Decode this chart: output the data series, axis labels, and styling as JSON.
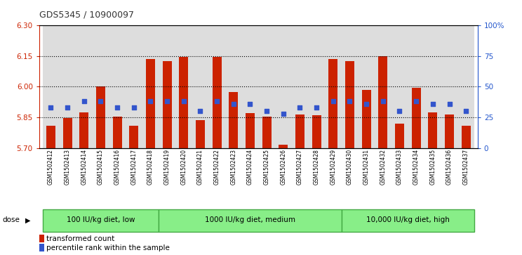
{
  "title": "GDS5345 / 10900097",
  "samples": [
    "GSM1502412",
    "GSM1502413",
    "GSM1502414",
    "GSM1502415",
    "GSM1502416",
    "GSM1502417",
    "GSM1502418",
    "GSM1502419",
    "GSM1502420",
    "GSM1502421",
    "GSM1502422",
    "GSM1502423",
    "GSM1502424",
    "GSM1502425",
    "GSM1502426",
    "GSM1502427",
    "GSM1502428",
    "GSM1502429",
    "GSM1502430",
    "GSM1502431",
    "GSM1502432",
    "GSM1502433",
    "GSM1502434",
    "GSM1502435",
    "GSM1502436",
    "GSM1502437"
  ],
  "bar_values": [
    5.81,
    5.845,
    5.875,
    6.0,
    5.855,
    5.81,
    6.135,
    6.125,
    6.145,
    5.835,
    6.145,
    5.975,
    5.87,
    5.855,
    5.715,
    5.865,
    5.86,
    6.135,
    6.125,
    5.985,
    6.148,
    5.82,
    5.995,
    5.875,
    5.865,
    5.81
  ],
  "blue_values_pct": [
    33,
    33,
    38,
    38,
    33,
    33,
    38,
    38,
    38,
    30,
    38,
    36,
    36,
    30,
    28,
    33,
    33,
    38,
    38,
    36,
    38,
    30,
    38,
    36,
    36,
    30
  ],
  "groups": [
    {
      "label": "100 IU/kg diet, low",
      "start": 0,
      "end": 7
    },
    {
      "label": "1000 IU/kg diet, medium",
      "start": 7,
      "end": 18
    },
    {
      "label": "10,000 IU/kg diet, high",
      "start": 18,
      "end": 26
    }
  ],
  "ymin": 5.7,
  "ymax": 6.3,
  "yticks_left": [
    5.7,
    5.85,
    6.0,
    6.15,
    6.3
  ],
  "right_yticks_pct": [
    0,
    25,
    50,
    75,
    100
  ],
  "right_yticklabels": [
    "0",
    "25",
    "50",
    "75",
    "100%"
  ],
  "grid_values": [
    5.85,
    6.0,
    6.15
  ],
  "bar_color": "#cc2200",
  "blue_color": "#3355cc",
  "group_color": "#88ee88",
  "group_border_color": "#44aa44",
  "plot_bg_color": "#ffffff",
  "col_bg_color": "#dddddd",
  "title_color": "#333333",
  "left_tick_color": "#cc2200",
  "right_tick_color": "#2255cc"
}
